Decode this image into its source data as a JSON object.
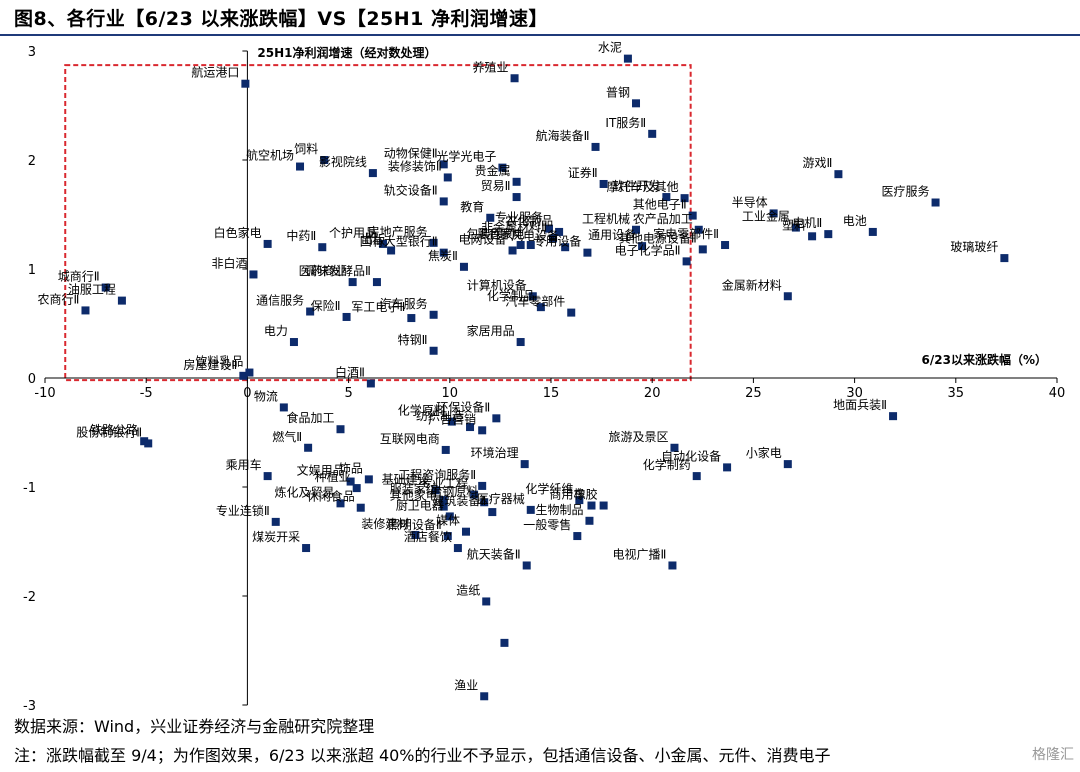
{
  "title": "图8、各行业【6/23 以来涨跌幅】VS【25H1 净利润增速】",
  "source": "数据来源：Wind，兴业证券经济与金融研究院整理",
  "note": "注：涨跌幅截至 9/4；为作图效果，6/23 以来涨超 40%的行业不予显示，包括通信设备、小金属、元件、消费电子",
  "watermark": "格隆汇",
  "colors": {
    "marker": "#0d2b6b",
    "box": "#d9282f",
    "axis": "#000000"
  },
  "chart_data": {
    "type": "scatter",
    "xlabel": "6/23以来涨跌幅（%）",
    "ylabel": "25H1净利润增速（经对数处理）",
    "xlim": [
      -10,
      40
    ],
    "ylim": [
      -3,
      3
    ],
    "xticks": [
      "-10",
      "-5",
      "0",
      "5",
      "10",
      "15",
      "20",
      "25",
      "30",
      "35",
      "40"
    ],
    "yticks": [
      "3",
      "2",
      "1",
      "0",
      "-1",
      "-2",
      "-3"
    ],
    "highlight_box": {
      "x": [
        -9,
        21.9
      ],
      "y": [
        -0.02,
        2.87
      ]
    },
    "points": [
      {
        "label": "航运港口",
        "x": -0.1,
        "y": 2.7
      },
      {
        "label": "养殖业",
        "x": 13.2,
        "y": 2.75
      },
      {
        "label": "水泥",
        "x": 18.8,
        "y": 2.93
      },
      {
        "label": "普钢",
        "x": 19.2,
        "y": 2.52
      },
      {
        "label": "航海装备Ⅱ",
        "x": 17.2,
        "y": 2.12
      },
      {
        "label": "IT服务Ⅱ",
        "x": 20.0,
        "y": 2.24
      },
      {
        "label": "航空机场",
        "x": 2.6,
        "y": 1.94
      },
      {
        "label": "饲料",
        "x": 3.8,
        "y": 2.0
      },
      {
        "label": "影视院线",
        "x": 6.2,
        "y": 1.88
      },
      {
        "label": "动物保健Ⅱ",
        "x": 9.7,
        "y": 1.96
      },
      {
        "label": "装修装饰Ⅱ",
        "x": 9.9,
        "y": 1.84
      },
      {
        "label": "光学光电子",
        "x": 12.6,
        "y": 1.93
      },
      {
        "label": "证券Ⅱ",
        "x": 17.6,
        "y": 1.78
      },
      {
        "label": "贵金属",
        "x": 13.3,
        "y": 1.8
      },
      {
        "label": "软件开发",
        "x": 20.7,
        "y": 1.66
      },
      {
        "label": "摩托车及其他",
        "x": 21.6,
        "y": 1.65
      },
      {
        "label": "游戏Ⅱ",
        "x": 29.2,
        "y": 1.87
      },
      {
        "label": "医疗服务",
        "x": 34.0,
        "y": 1.61
      },
      {
        "label": "轨交设备Ⅱ",
        "x": 9.7,
        "y": 1.62
      },
      {
        "label": "贸易Ⅱ",
        "x": 13.3,
        "y": 1.66
      },
      {
        "label": "教育",
        "x": 12.0,
        "y": 1.47
      },
      {
        "label": "其他电子Ⅱ",
        "x": 22.0,
        "y": 1.49
      },
      {
        "label": "半导体",
        "x": 26.0,
        "y": 1.51
      },
      {
        "label": "工程机械",
        "x": 19.2,
        "y": 1.36
      },
      {
        "label": "专业服务",
        "x": 14.9,
        "y": 1.37
      },
      {
        "label": "农化制品",
        "x": 15.4,
        "y": 1.34
      },
      {
        "label": "农产品加工",
        "x": 22.3,
        "y": 1.36
      },
      {
        "label": "工业金属",
        "x": 27.1,
        "y": 1.38
      },
      {
        "label": "电机Ⅱ",
        "x": 28.7,
        "y": 1.32
      },
      {
        "label": "电池",
        "x": 30.9,
        "y": 1.34
      },
      {
        "label": "玻璃玻纤",
        "x": 37.4,
        "y": 1.1
      },
      {
        "label": "白色家电",
        "x": 1.0,
        "y": 1.23
      },
      {
        "label": "中药Ⅱ",
        "x": 3.7,
        "y": 1.2
      },
      {
        "label": "个护用品",
        "x": 6.7,
        "y": 1.23
      },
      {
        "label": "房地产服务",
        "x": 9.2,
        "y": 1.24
      },
      {
        "label": "非金属材料Ⅱ",
        "x": 15.1,
        "y": 1.28
      },
      {
        "label": "通用设备",
        "x": 19.5,
        "y": 1.21
      },
      {
        "label": "家电零部件Ⅱ",
        "x": 23.6,
        "y": 1.22
      },
      {
        "label": "塑料",
        "x": 27.9,
        "y": 1.3
      },
      {
        "label": "包装印刷",
        "x": 13.5,
        "y": 1.22
      },
      {
        "label": "风电设备",
        "x": 15.7,
        "y": 1.2
      },
      {
        "label": "黑色家电",
        "x": 14.0,
        "y": 1.22
      },
      {
        "label": "出版",
        "x": 7.1,
        "y": 1.17
      },
      {
        "label": "国有大型银行Ⅱ",
        "x": 9.7,
        "y": 1.15
      },
      {
        "label": "电网设备",
        "x": 13.1,
        "y": 1.17
      },
      {
        "label": "专用设备",
        "x": 16.8,
        "y": 1.15
      },
      {
        "label": "其他电源设备Ⅱ",
        "x": 22.5,
        "y": 1.18
      },
      {
        "label": "电子化学品Ⅱ",
        "x": 21.7,
        "y": 1.07
      },
      {
        "label": "非白酒",
        "x": 0.3,
        "y": 0.95
      },
      {
        "label": "焦炭Ⅱ",
        "x": 10.7,
        "y": 1.02
      },
      {
        "label": "医药商业",
        "x": 5.2,
        "y": 0.88
      },
      {
        "label": "调味发酵品Ⅱ",
        "x": 6.4,
        "y": 0.88
      },
      {
        "label": "城商行Ⅱ",
        "x": -7.0,
        "y": 0.83
      },
      {
        "label": "油服工程",
        "x": -6.2,
        "y": 0.71
      },
      {
        "label": "农商行Ⅱ",
        "x": -8.0,
        "y": 0.62
      },
      {
        "label": "计算机设备",
        "x": 14.1,
        "y": 0.75
      },
      {
        "label": "化学制品",
        "x": 14.5,
        "y": 0.65
      },
      {
        "label": "金属新材料",
        "x": 26.7,
        "y": 0.75
      },
      {
        "label": "通信服务",
        "x": 3.1,
        "y": 0.61
      },
      {
        "label": "军工电子Ⅱ",
        "x": 8.1,
        "y": 0.55
      },
      {
        "label": "汽车零部件",
        "x": 16.0,
        "y": 0.6
      },
      {
        "label": "保险Ⅱ",
        "x": 4.9,
        "y": 0.56
      },
      {
        "label": "汽车服务",
        "x": 9.2,
        "y": 0.58
      },
      {
        "label": "家居用品",
        "x": 13.5,
        "y": 0.33
      },
      {
        "label": "电力",
        "x": 2.3,
        "y": 0.33
      },
      {
        "label": "特钢Ⅱ",
        "x": 9.2,
        "y": 0.25
      },
      {
        "label": "房屋建设Ⅱ",
        "x": -0.2,
        "y": 0.02
      },
      {
        "label": "饮料乳品",
        "x": 0.1,
        "y": 0.05
      },
      {
        "label": "白酒Ⅱ",
        "x": 6.1,
        "y": -0.05
      },
      {
        "label": "物流",
        "x": 1.8,
        "y": -0.27
      },
      {
        "label": "食品加工",
        "x": 4.6,
        "y": -0.47
      },
      {
        "label": "化学原料",
        "x": 10.1,
        "y": -0.4
      },
      {
        "label": "环保设备Ⅱ",
        "x": 12.3,
        "y": -0.37
      },
      {
        "label": "地面兵装Ⅱ",
        "x": 31.9,
        "y": -0.35
      },
      {
        "label": "纺织制造",
        "x": 11.0,
        "y": -0.45
      },
      {
        "label": "广告营销",
        "x": 11.6,
        "y": -0.48
      },
      {
        "label": "铁路公路",
        "x": -5.1,
        "y": -0.58
      },
      {
        "label": "股份制银行Ⅱ",
        "x": -4.9,
        "y": -0.6
      },
      {
        "label": "燃气Ⅱ",
        "x": 3.0,
        "y": -0.64
      },
      {
        "label": "旅游及景区",
        "x": 21.1,
        "y": -0.64
      },
      {
        "label": "互联网电商",
        "x": 9.8,
        "y": -0.66
      },
      {
        "label": "乘用车",
        "x": 1.0,
        "y": -0.9
      },
      {
        "label": "环境治理",
        "x": 13.7,
        "y": -0.79
      },
      {
        "label": "自动化设备",
        "x": 23.7,
        "y": -0.82
      },
      {
        "label": "小家电",
        "x": 26.7,
        "y": -0.79
      },
      {
        "label": "文娱用品",
        "x": 5.1,
        "y": -0.95
      },
      {
        "label": "饰品",
        "x": 6.0,
        "y": -0.93
      },
      {
        "label": "化学制药",
        "x": 22.2,
        "y": -0.9
      },
      {
        "label": "种植业",
        "x": 5.4,
        "y": -1.01
      },
      {
        "label": "基础建设",
        "x": 9.3,
        "y": -1.03
      },
      {
        "label": "工程咨询服务Ⅱ",
        "x": 11.6,
        "y": -0.99
      },
      {
        "label": "专业工程",
        "x": 11.2,
        "y": -1.07
      },
      {
        "label": "炼化及贸易",
        "x": 4.6,
        "y": -1.15
      },
      {
        "label": "休闲食品",
        "x": 5.6,
        "y": -1.19
      },
      {
        "label": "服装家纺",
        "x": 9.7,
        "y": -1.12
      },
      {
        "label": "冶钢原料",
        "x": 11.7,
        "y": -1.14
      },
      {
        "label": "化学纤维",
        "x": 16.4,
        "y": -1.12
      },
      {
        "label": "商用车",
        "x": 17.0,
        "y": -1.17
      },
      {
        "label": "橡胶",
        "x": 17.6,
        "y": -1.17
      },
      {
        "label": "其他家电",
        "x": 9.7,
        "y": -1.18
      },
      {
        "label": "建筑装备Ⅱ",
        "x": 12.1,
        "y": -1.23
      },
      {
        "label": "医疗器械",
        "x": 14.0,
        "y": -1.21
      },
      {
        "label": "厨卫电器",
        "x": 10.0,
        "y": -1.27
      },
      {
        "label": "生物制品",
        "x": 16.9,
        "y": -1.31
      },
      {
        "label": "专业连锁Ⅱ",
        "x": 1.4,
        "y": -1.32
      },
      {
        "label": "装修建材",
        "x": 8.3,
        "y": -1.44
      },
      {
        "label": "照明设备Ⅱ",
        "x": 9.9,
        "y": -1.45
      },
      {
        "label": "媒体",
        "x": 10.8,
        "y": -1.41
      },
      {
        "label": "一般零售",
        "x": 16.3,
        "y": -1.45
      },
      {
        "label": "电视广播Ⅱ",
        "x": 21.0,
        "y": -1.72
      },
      {
        "label": "煤炭开采",
        "x": 2.9,
        "y": -1.56
      },
      {
        "label": "酒店餐饮",
        "x": 10.4,
        "y": -1.56
      },
      {
        "label": "航天装备Ⅱ",
        "x": 13.8,
        "y": -1.72
      },
      {
        "label": "造纸",
        "x": 11.8,
        "y": -2.05
      },
      {
        "label": "",
        "x": 12.7,
        "y": -2.43
      },
      {
        "label": "渔业",
        "x": 11.7,
        "y": -2.92
      }
    ]
  }
}
